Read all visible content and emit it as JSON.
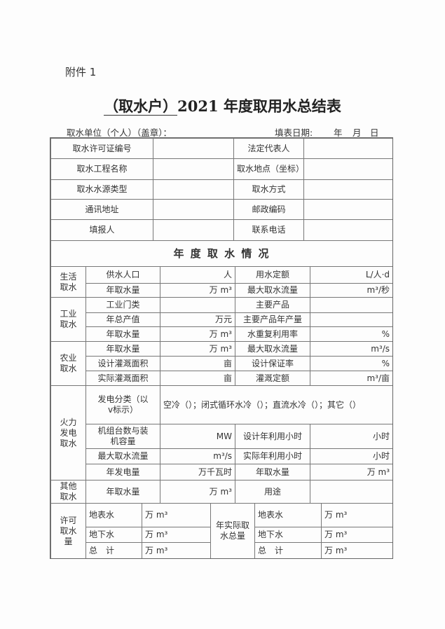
{
  "attachment": "附件 1",
  "title": {
    "prefix": "（取水户）",
    "rest": "2021 年度取用水总结表"
  },
  "meta": {
    "unit_label": "取水单位（个人）（盖章）：",
    "date_label": "填表日期:",
    "year": "年",
    "month": "月",
    "day": "日"
  },
  "basic": [
    [
      "取水许可证编号",
      "法定代表人"
    ],
    [
      "取水工程名称",
      "取水地点（坐标）"
    ],
    [
      "取水水源类型",
      "取水方式"
    ],
    [
      "通讯地址",
      "邮政编码"
    ],
    [
      "填报人",
      "联系电话"
    ]
  ],
  "section_title": "年 度 取 水 情 况",
  "domestic": {
    "cat": "生活取水",
    "rows": [
      [
        "供水人口",
        "人",
        "用水定额",
        "L/人·d"
      ],
      [
        "年取水量",
        "万 m³",
        "最大取水流量",
        "m³/秒"
      ]
    ]
  },
  "industry": {
    "cat": "工业取水",
    "rows": [
      [
        "工业门类",
        "",
        "主要产品",
        ""
      ],
      [
        "年总产值",
        "万元",
        "主要产品年产量",
        ""
      ],
      [
        "年取水量",
        "万 m³",
        "水重复利用率",
        "%"
      ]
    ]
  },
  "agri": {
    "cat": "农业取水",
    "rows": [
      [
        "年取水量",
        "万 m³",
        "最大取水流量",
        "m³/s"
      ],
      [
        "设计灌溉面积",
        "亩",
        "设计保证率",
        "%"
      ],
      [
        "实际灌溉面积",
        "亩",
        "灌溉定额",
        "m³/亩"
      ]
    ]
  },
  "thermal": {
    "cat": "火力发电取水",
    "type_label": "发电分类（以v标示）",
    "type_options": "空冷（）；闭式循环水冷（）；直流水冷（）；其它（）",
    "rows": [
      [
        "机组台数与装机容量",
        "MW",
        "设计年利用小时",
        "小时"
      ],
      [
        "最大取水流量",
        "m³/s",
        "实际年利用小时",
        "小时"
      ],
      [
        "年发电量",
        "万千瓦时",
        "年取水量",
        "万 m³"
      ]
    ]
  },
  "other": {
    "cat": "其他取水",
    "row": [
      "年取水量",
      "万 m³",
      "用途",
      ""
    ]
  },
  "permit": {
    "cat": "许可取水量",
    "actual": "年实际取水总量",
    "rows": [
      [
        "地表水",
        "万 m³"
      ],
      [
        "地下水",
        "万 m³"
      ],
      [
        "总　计",
        "万 m³"
      ]
    ]
  }
}
